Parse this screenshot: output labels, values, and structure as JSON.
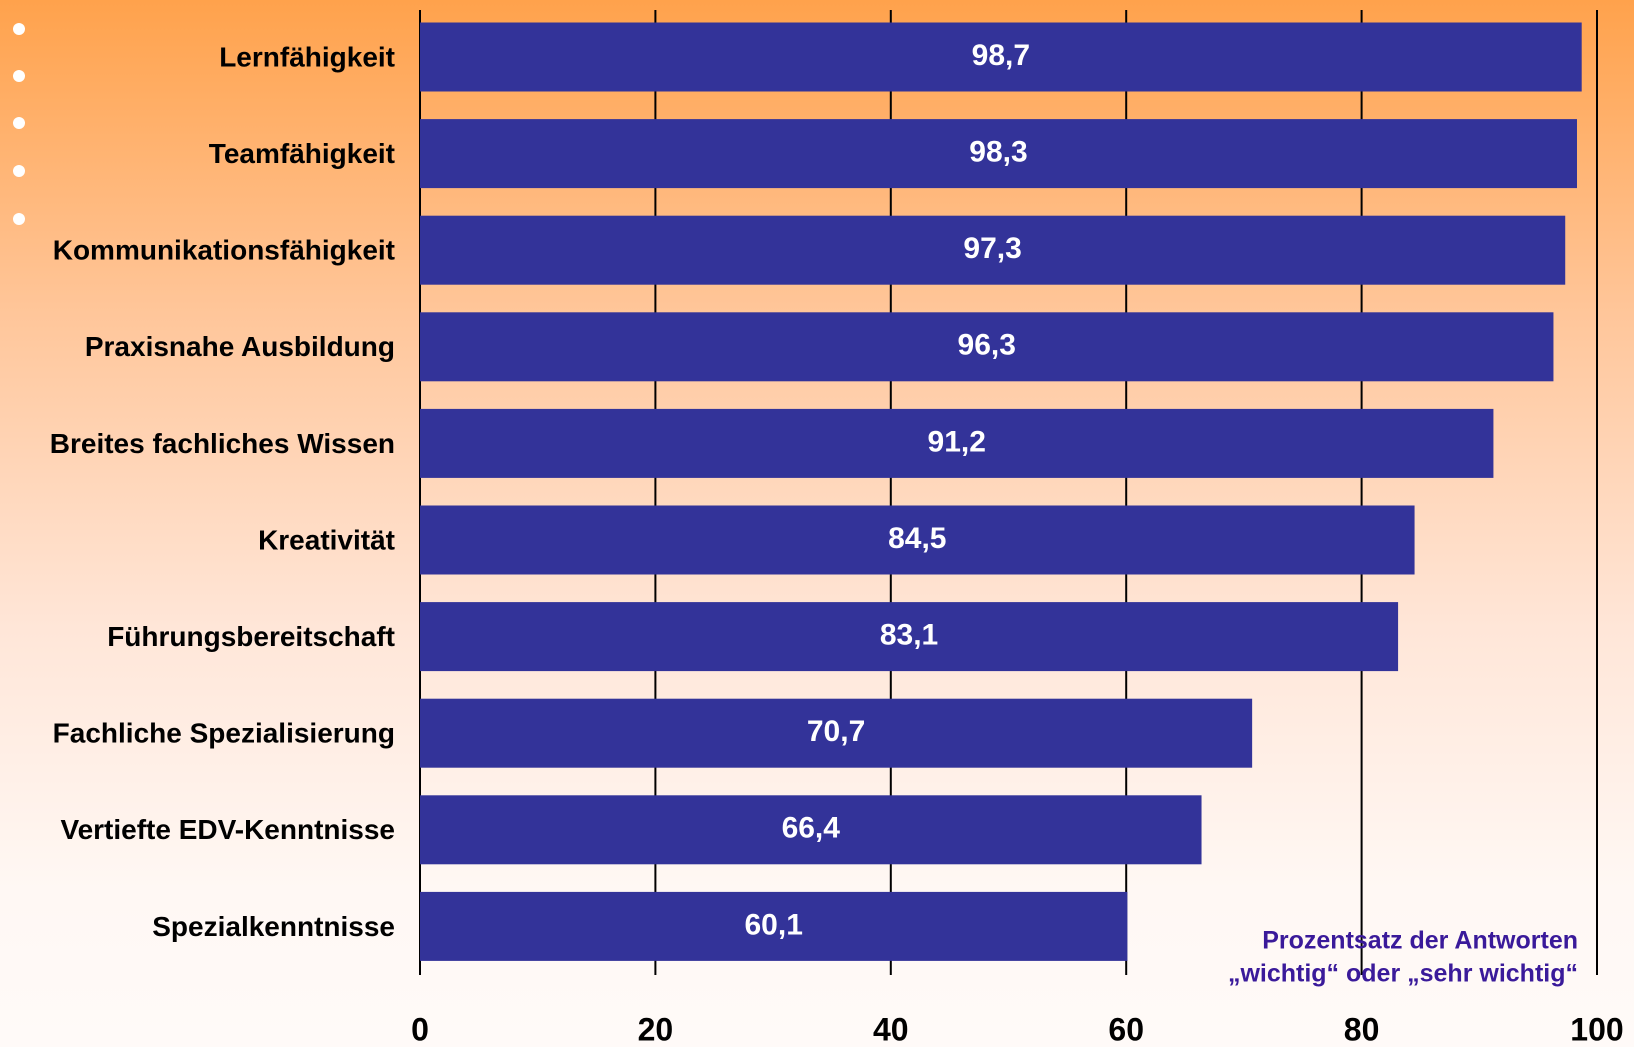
{
  "chart_data": {
    "type": "bar",
    "orientation": "horizontal",
    "categories": [
      "Lernfähigkeit",
      "Teamfähigkeit",
      "Kommunikationsfähigkeit",
      "Praxisnahe Ausbildung",
      "Breites fachliches Wissen",
      "Kreativität",
      "Führungsbereitschaft",
      "Fachliche Spezialisierung",
      "Vertiefte EDV-Kenntnisse",
      "Spezialkenntnisse"
    ],
    "values": [
      98.7,
      98.3,
      97.3,
      96.3,
      91.2,
      84.5,
      83.1,
      70.7,
      66.4,
      60.1
    ],
    "value_labels": [
      "98,7",
      "98,3",
      "97,3",
      "96,3",
      "91,2",
      "84,5",
      "83,1",
      "70,7",
      "66,4",
      "60,1"
    ],
    "color": "#333399",
    "xlim": [
      0,
      100
    ],
    "xticks": [
      0,
      20,
      40,
      60,
      80,
      100
    ],
    "grid": true,
    "annotation": [
      "Prozentsatz der Antworten",
      "„wichtig“ oder „sehr wichtig“"
    ]
  }
}
